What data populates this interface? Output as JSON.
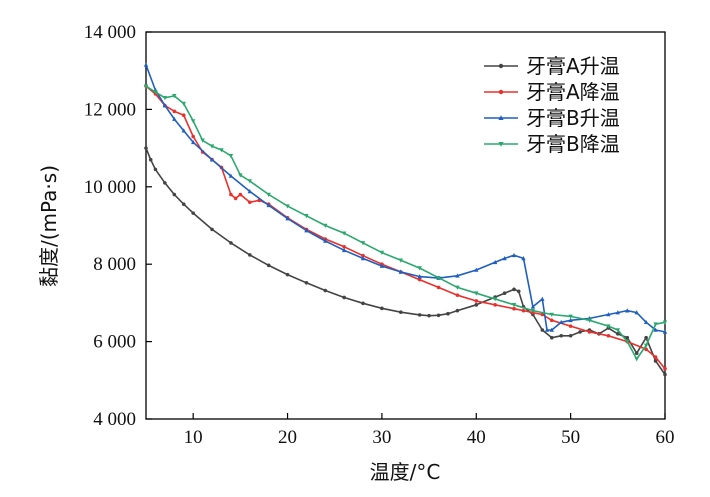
{
  "chart_data": {
    "type": "line",
    "title": "",
    "xlabel": "温度/°C",
    "ylabel": "黏度/(mPa·s)",
    "xlim": [
      5,
      60
    ],
    "ylim": [
      4000,
      14000
    ],
    "x_ticks": [
      10,
      20,
      30,
      40,
      50,
      60
    ],
    "x_tick_labels": [
      "10",
      "20",
      "30",
      "40",
      "50",
      "60"
    ],
    "y_ticks": [
      4000,
      6000,
      8000,
      10000,
      12000,
      14000
    ],
    "y_tick_labels": [
      "4 000",
      "6 000",
      "8 000",
      "10 000",
      "12 000",
      "14 000"
    ],
    "grid": false,
    "legend_position": "top-right",
    "series": [
      {
        "name": "牙膏A升温",
        "color": "#444444",
        "x": [
          5,
          5.5,
          6,
          7,
          8,
          9,
          10,
          12,
          14,
          16,
          18,
          20,
          22,
          24,
          26,
          28,
          30,
          32,
          34,
          35,
          36,
          37,
          38,
          40,
          42,
          43,
          44,
          44.5,
          45,
          46,
          47,
          48,
          49,
          50,
          51,
          52,
          53,
          54,
          55,
          56,
          57,
          58,
          59,
          60
        ],
        "y": [
          11000,
          10700,
          10450,
          10100,
          9800,
          9550,
          9320,
          8900,
          8550,
          8240,
          7970,
          7730,
          7520,
          7320,
          7140,
          6990,
          6860,
          6760,
          6690,
          6670,
          6680,
          6720,
          6800,
          6950,
          7150,
          7250,
          7350,
          7300,
          6900,
          6700,
          6300,
          6100,
          6150,
          6150,
          6250,
          6300,
          6200,
          6350,
          6200,
          6100,
          5700,
          6100,
          5500,
          5150
        ]
      },
      {
        "name": "牙膏A降温",
        "color": "#e8302c",
        "x": [
          5,
          6,
          7,
          8,
          9,
          10,
          11,
          12,
          13,
          14,
          14.5,
          15,
          16,
          17,
          18,
          20,
          22,
          24,
          26,
          28,
          30,
          32,
          34,
          36,
          38,
          40,
          42,
          44,
          45,
          46,
          47,
          48,
          50,
          52,
          54,
          56,
          58,
          59,
          60
        ],
        "y": [
          12600,
          12400,
          12100,
          11950,
          11850,
          11300,
          10900,
          10700,
          10500,
          9800,
          9700,
          9800,
          9600,
          9650,
          9550,
          9200,
          8900,
          8650,
          8450,
          8220,
          8000,
          7800,
          7600,
          7400,
          7200,
          7050,
          6950,
          6850,
          6800,
          6750,
          6700,
          6550,
          6400,
          6250,
          6150,
          6000,
          5800,
          5600,
          5300
        ]
      },
      {
        "name": "牙膏B升温",
        "color": "#1f5fbf",
        "x": [
          5,
          6,
          7,
          8,
          9,
          10,
          12,
          14,
          16,
          18,
          20,
          22,
          24,
          26,
          28,
          30,
          32,
          34,
          36,
          38,
          40,
          42,
          43,
          44,
          45,
          46,
          47,
          47.5,
          48,
          49,
          50,
          52,
          54,
          55,
          56,
          57,
          58,
          59,
          60
        ],
        "y": [
          13150,
          12500,
          12100,
          11750,
          11450,
          11150,
          10700,
          10280,
          9880,
          9520,
          9180,
          8870,
          8600,
          8360,
          8150,
          7950,
          7800,
          7680,
          7640,
          7700,
          7850,
          8050,
          8150,
          8230,
          8150,
          6900,
          7100,
          6300,
          6300,
          6500,
          6550,
          6600,
          6700,
          6750,
          6800,
          6750,
          6500,
          6300,
          6250
        ]
      },
      {
        "name": "牙膏B降温",
        "color": "#2aa86e",
        "x": [
          5,
          6,
          7,
          8,
          9,
          10,
          11,
          12,
          13,
          14,
          15,
          16,
          18,
          20,
          22,
          24,
          26,
          28,
          30,
          32,
          34,
          36,
          38,
          40,
          42,
          44,
          46,
          48,
          50,
          52,
          54,
          55,
          56,
          57,
          58,
          59,
          60
        ],
        "y": [
          12600,
          12450,
          12300,
          12350,
          12150,
          11700,
          11200,
          11050,
          10950,
          10800,
          10300,
          10150,
          9800,
          9500,
          9250,
          9000,
          8800,
          8550,
          8300,
          8100,
          7900,
          7650,
          7400,
          7250,
          7100,
          6950,
          6800,
          6700,
          6650,
          6550,
          6400,
          6300,
          6000,
          5550,
          5900,
          6450,
          6500
        ]
      }
    ]
  }
}
